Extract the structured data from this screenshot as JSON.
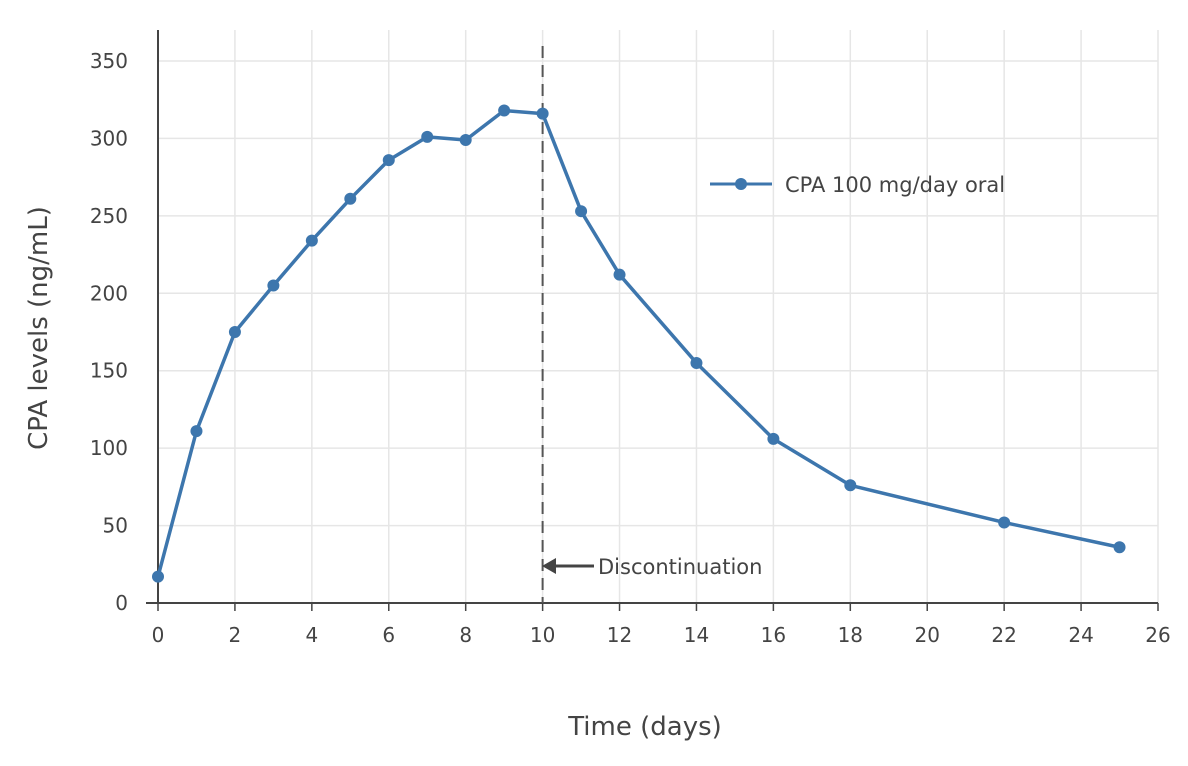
{
  "chart_data": {
    "type": "line",
    "xlabel": "Time (days)",
    "ylabel": "CPA levels (ng/mL)",
    "xlim": [
      0,
      26
    ],
    "ylim": [
      0,
      370
    ],
    "x_ticks": [
      0,
      2,
      4,
      6,
      8,
      10,
      12,
      14,
      16,
      18,
      20,
      22,
      24,
      26
    ],
    "y_ticks": [
      0,
      50,
      100,
      150,
      200,
      250,
      300,
      350
    ],
    "grid": true,
    "legend_position": "top-right",
    "series": [
      {
        "name": "CPA 100 mg/day oral",
        "color": "#3d76ad",
        "x": [
          0,
          1,
          2,
          3,
          4,
          5,
          6,
          7,
          8,
          9,
          10,
          11,
          12,
          14,
          16,
          18,
          22,
          25
        ],
        "y": [
          17,
          111,
          175,
          205,
          234,
          261,
          286,
          301,
          299,
          318,
          316,
          253,
          212,
          155,
          106,
          76,
          52,
          36
        ]
      }
    ],
    "annotations": [
      {
        "text": "Discontinuation",
        "x": 10,
        "line": "vertical-dashed",
        "arrow": "left"
      }
    ]
  }
}
